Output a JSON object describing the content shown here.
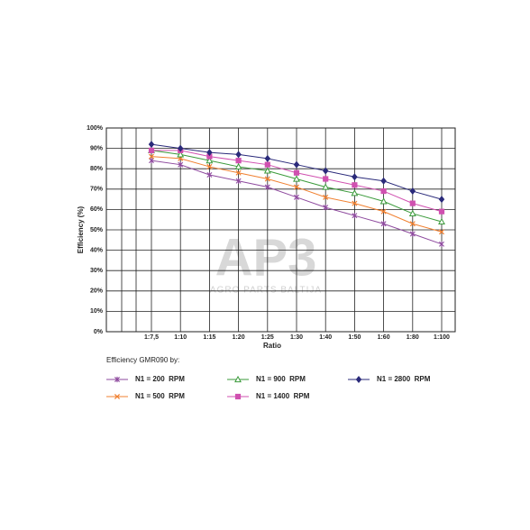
{
  "chart_data": {
    "type": "line",
    "x_label": "Ratio",
    "y_label": "Efficiency (%)",
    "legend_title": "Efficiency GMR090 by:",
    "categories": [
      "1:7,5",
      "1:10",
      "1:15",
      "1:20",
      "1:25",
      "1:30",
      "1:40",
      "1:50",
      "1:60",
      "1:80",
      "1:100"
    ],
    "series": [
      {
        "name": "N1 = 200  RPM",
        "color": "#8e4a9e",
        "marker": "star",
        "values": [
          84,
          82,
          77,
          74,
          71,
          66,
          61,
          57,
          53,
          48,
          43
        ]
      },
      {
        "name": "N1 = 500  RPM",
        "color": "#f08030",
        "marker": "x",
        "values": [
          86,
          85,
          81,
          78,
          75,
          71,
          66,
          63,
          59,
          53,
          49
        ]
      },
      {
        "name": "N1 = 900  RPM",
        "color": "#3a9a3a",
        "marker": "triangle",
        "values": [
          89,
          87,
          84,
          81,
          79,
          75,
          71,
          68,
          64,
          58,
          54
        ]
      },
      {
        "name": "N1 = 1400  RPM",
        "color": "#d050b0",
        "marker": "square",
        "values": [
          89,
          89,
          86,
          84,
          82,
          78,
          75,
          72,
          69,
          63,
          59
        ]
      },
      {
        "name": "N1 = 2800  RPM",
        "color": "#2a2a7a",
        "marker": "diamond",
        "values": [
          92,
          90,
          88,
          87,
          85,
          82,
          79,
          76,
          74,
          69,
          65
        ]
      }
    ],
    "ylim": [
      0,
      100
    ],
    "yticks": [
      {
        "value": 0,
        "label": "0%"
      },
      {
        "value": 10,
        "label": "10%"
      },
      {
        "value": 20,
        "label": "20%"
      },
      {
        "value": 30,
        "label": "30%"
      },
      {
        "value": 40,
        "label": "40%"
      },
      {
        "value": 50,
        "label": "50%"
      },
      {
        "value": 60,
        "label": "60%"
      },
      {
        "value": 70,
        "label": "70%"
      },
      {
        "value": 80,
        "label": "80%"
      },
      {
        "value": 90,
        "label": "90%"
      },
      {
        "value": 100,
        "label": "100%"
      }
    ],
    "grid": true
  },
  "watermark": {
    "logo": "AP3",
    "text": "AGRO PARTS BALTIJA"
  }
}
